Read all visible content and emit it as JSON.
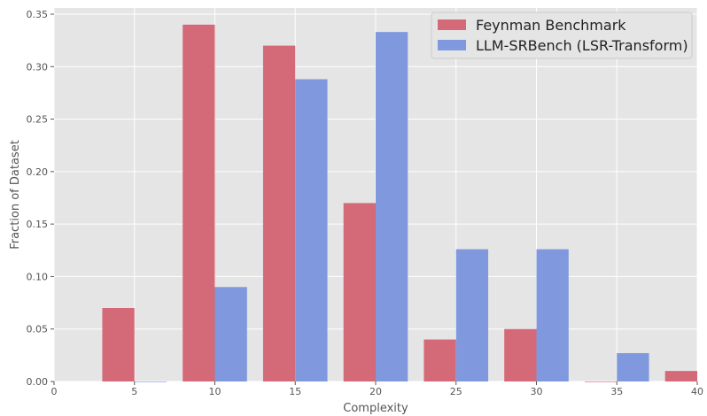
{
  "chart_data": {
    "type": "bar",
    "title": "",
    "xlabel": "Complexity",
    "ylabel": "Fraction of Dataset",
    "xlim": [
      0,
      40
    ],
    "ylim": [
      0,
      0.35
    ],
    "xticks": [
      "0",
      "5",
      "10",
      "15",
      "20",
      "25",
      "30",
      "35",
      "40"
    ],
    "yticks": [
      "0.00",
      "0.05",
      "0.10",
      "0.15",
      "0.20",
      "0.25",
      "0.30",
      "0.35"
    ],
    "grid": true,
    "legend_position": "top-right",
    "series": [
      {
        "name": "Feynman Benchmark",
        "color": "#d46a77",
        "x_ranges": [
          [
            3,
            5
          ],
          [
            8,
            10
          ],
          [
            13,
            15
          ],
          [
            18,
            20
          ],
          [
            23,
            25
          ],
          [
            28,
            30
          ],
          [
            33,
            35
          ],
          [
            38,
            40
          ]
        ],
        "values": [
          0.07,
          0.34,
          0.32,
          0.17,
          0.04,
          0.05,
          0.0,
          0.01
        ]
      },
      {
        "name": "LLM-SRBench (LSR-Transform)",
        "color": "#8098de",
        "x_ranges": [
          [
            5,
            7
          ],
          [
            10,
            12
          ],
          [
            15,
            17
          ],
          [
            20,
            22
          ],
          [
            25,
            27
          ],
          [
            30,
            32
          ],
          [
            35,
            37
          ]
        ],
        "values": [
          0.0,
          0.09,
          0.288,
          0.333,
          0.126,
          0.126,
          0.027
        ]
      }
    ]
  }
}
